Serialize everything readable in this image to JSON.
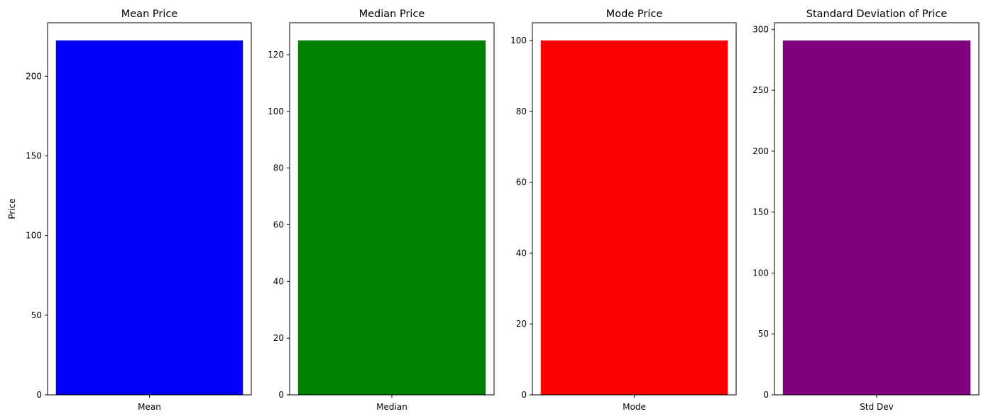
{
  "chart_data": [
    {
      "type": "bar",
      "title": "Mean Price",
      "categories": [
        "Mean"
      ],
      "values": [
        222.5
      ],
      "ylabel": "Price",
      "xlabel": "",
      "ylim": [
        0,
        233.6
      ],
      "yticks": [
        0,
        50,
        100,
        150,
        200
      ],
      "color": "#0000ff",
      "grid": false
    },
    {
      "type": "bar",
      "title": "Median Price",
      "categories": [
        "Median"
      ],
      "values": [
        125
      ],
      "ylabel": "",
      "xlabel": "",
      "ylim": [
        0,
        131.25
      ],
      "yticks": [
        0,
        20,
        40,
        60,
        80,
        100,
        120
      ],
      "color": "#008000",
      "grid": false
    },
    {
      "type": "bar",
      "title": "Mode Price",
      "categories": [
        "Mode"
      ],
      "values": [
        100
      ],
      "ylabel": "",
      "xlabel": "",
      "ylim": [
        0,
        105
      ],
      "yticks": [
        0,
        20,
        40,
        60,
        80,
        100
      ],
      "color": "#ff0000",
      "grid": false
    },
    {
      "type": "bar",
      "title": "Standard Deviation of Price",
      "categories": [
        "Std Dev"
      ],
      "values": [
        290.8
      ],
      "ylabel": "",
      "xlabel": "",
      "ylim": [
        0,
        305.4
      ],
      "yticks": [
        0,
        50,
        100,
        150,
        200,
        250,
        300
      ],
      "color": "#800080",
      "grid": false
    }
  ]
}
